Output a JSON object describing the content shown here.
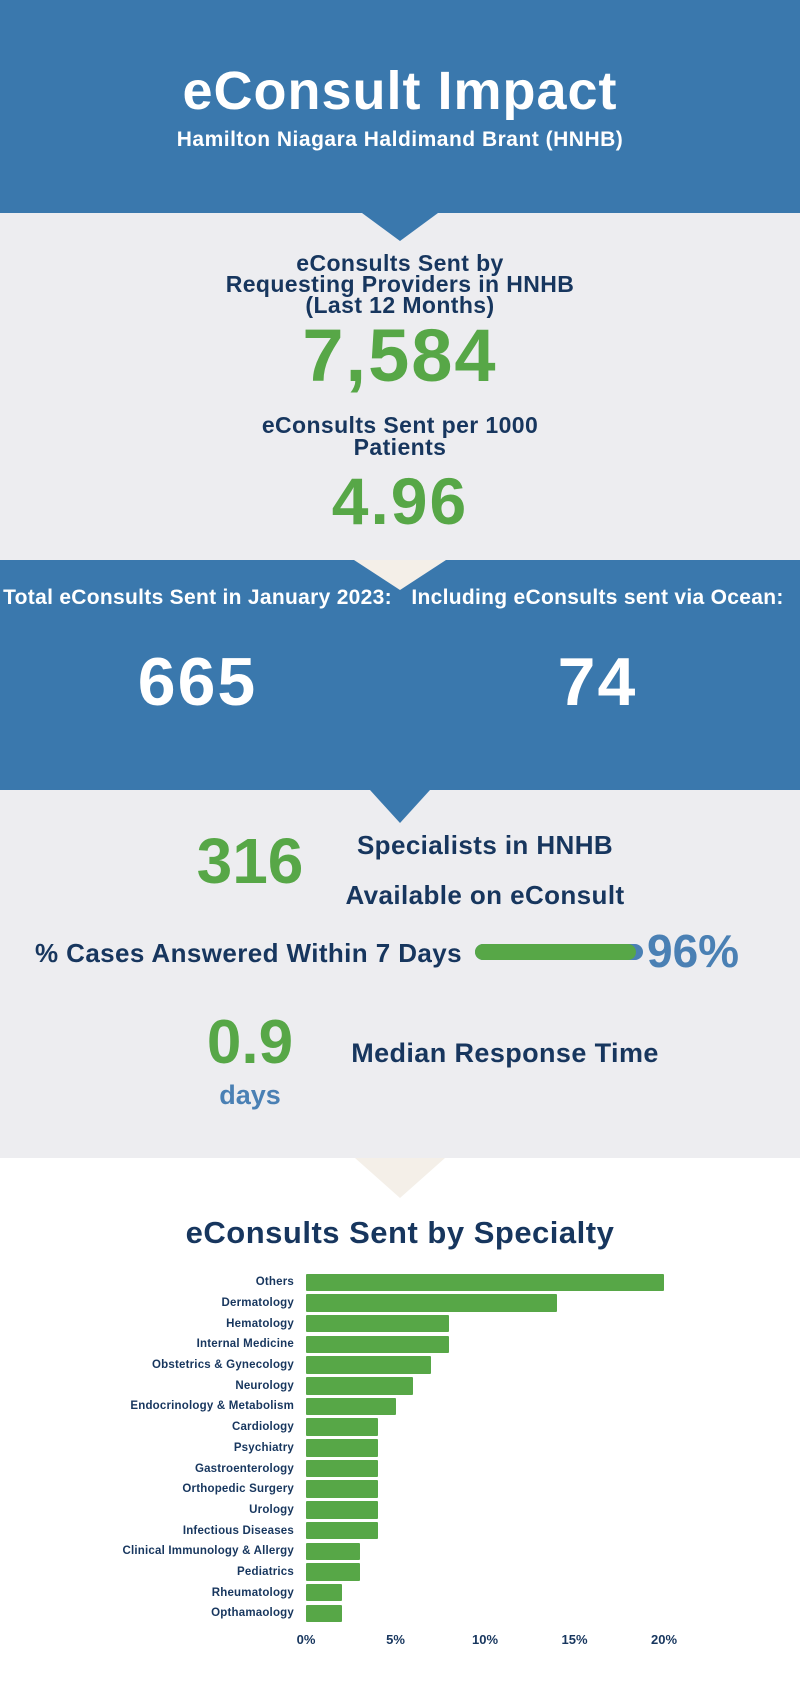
{
  "colors": {
    "header_blue": "#3a78ad",
    "navy_text": "#17365e",
    "green_accent": "#57a747",
    "light_blue_accent": "#4a80b4",
    "gray_background": "#ededf0",
    "cream_triangle": "#f4efe8"
  },
  "header": {
    "title": "eConsult Impact",
    "subtitle": "Hamilton Niagara Haldimand Brant (HNHB)"
  },
  "sent_stats": {
    "label1_line1": "eConsults Sent by",
    "label1_line2": "Requesting Providers in HNHB",
    "label1_line3": "(Last 12 Months)",
    "value1": "7,584",
    "label2_line1": "eConsults Sent per 1000",
    "label2_line2": "Patients",
    "value2": "4.96"
  },
  "january_band": {
    "left_label": "Total eConsults Sent in January 2023:",
    "left_value": "665",
    "right_label": "Including eConsults sent via Ocean:",
    "right_value": "74"
  },
  "performance": {
    "specialists_value": "316",
    "specialists_label_line1": "Specialists in HNHB",
    "specialists_label_line2": "Available on eConsult",
    "answered_label": "% Cases Answered Within 7 Days",
    "answered_value": "96%",
    "answered_pct": 96,
    "response_value": "0.9",
    "response_unit": "days",
    "response_label": "Median Response Time"
  },
  "chart_data": {
    "type": "bar",
    "orientation": "horizontal",
    "title": "eConsults Sent by Specialty",
    "categories": [
      "Others",
      "Dermatology",
      "Hematology",
      "Internal Medicine",
      "Obstetrics & Gynecology",
      "Neurology",
      "Endocrinology & Metabolism",
      "Cardiology",
      "Psychiatry",
      "Gastroenterology",
      "Orthopedic Surgery",
      "Urology",
      "Infectious Diseases",
      "Clinical Immunology & Allergy",
      "Pediatrics",
      "Rheumatology",
      "Opthamaology"
    ],
    "values": [
      20,
      14,
      8,
      8,
      7,
      6,
      5,
      4,
      4,
      4,
      4,
      4,
      4,
      3,
      3,
      2,
      2
    ],
    "unit": "%",
    "x_ticks": [
      "0%",
      "5%",
      "10%",
      "15%",
      "20%"
    ],
    "x_tick_values": [
      0,
      5,
      10,
      15,
      20
    ],
    "xlim": [
      0,
      21.5
    ],
    "grid": false,
    "legend": false,
    "bar_color": "#57a747"
  }
}
